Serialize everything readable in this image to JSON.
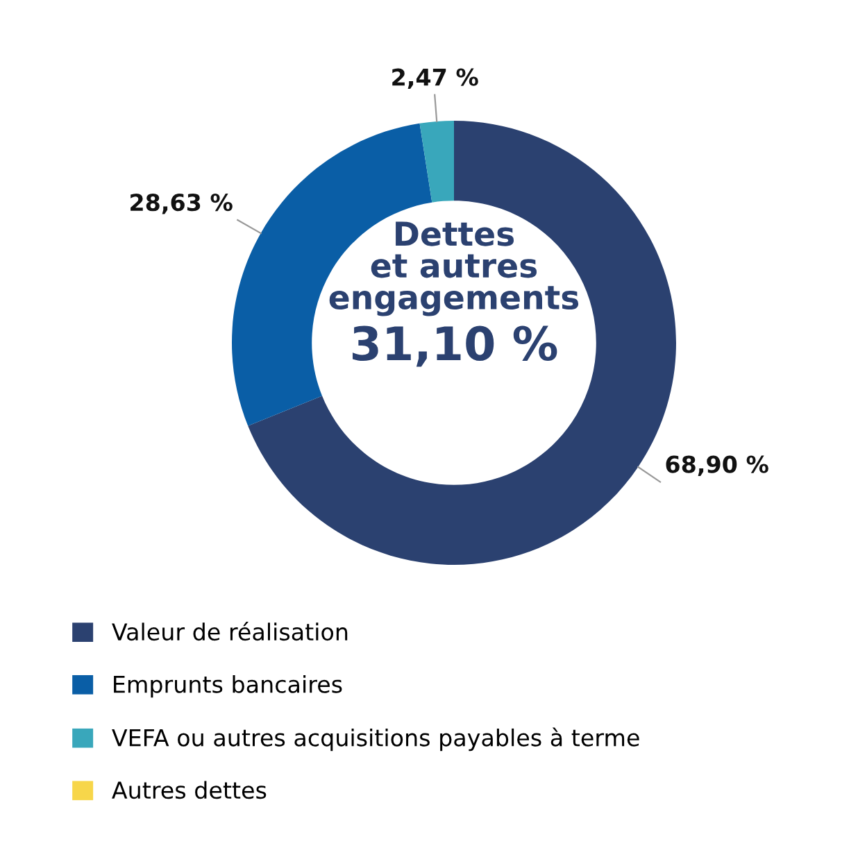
{
  "chart_data": {
    "type": "donut",
    "title": "Dettes\net autres\nengagements",
    "subtitle": "31,10 %",
    "categories": [
      "Valeur de réalisation",
      "Emprunts bancaires",
      "VEFA ou autres acquisitions payables à terme",
      "Autres dettes"
    ],
    "values": [
      68.9,
      28.63,
      2.47,
      0
    ],
    "colors": [
      "#2b4170",
      "#0a5ea6",
      "#39a7bb",
      "#f7d64a"
    ],
    "value_labels": [
      "68,90 %",
      "28,63 %",
      "2,47 %",
      null
    ],
    "legend": "bottom left"
  }
}
